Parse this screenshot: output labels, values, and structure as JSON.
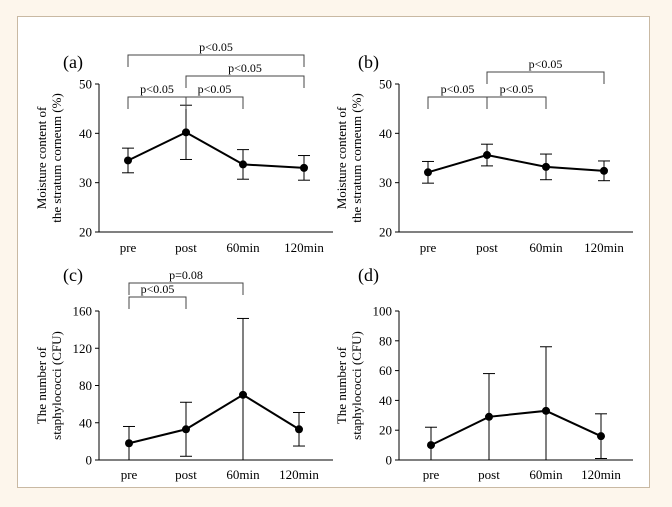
{
  "colors": {
    "page_background": "#fdf6ec",
    "panel_background": "#ffffff",
    "border": "#c9b9a3",
    "ink": "#000000"
  },
  "chart_data": [
    {
      "type": "line",
      "panel_label": "(a)",
      "categories": [
        "pre",
        "post",
        "60min",
        "120min"
      ],
      "values": [
        34.5,
        40.2,
        33.7,
        33.0
      ],
      "error": [
        2.5,
        5.5,
        3.0,
        2.5
      ],
      "ylabel_lines": [
        "Moisture content of",
        "the stratum corneum (%)"
      ],
      "ylim": [
        20,
        50
      ],
      "yticks": [
        20,
        30,
        40,
        50
      ],
      "brackets": [
        {
          "from": 0,
          "to": 3,
          "level": 3,
          "label": "p<0.05"
        },
        {
          "from": 1,
          "to": 3,
          "level": 2,
          "label": "p<0.05"
        },
        {
          "from": 0,
          "to": 1,
          "level": 1,
          "label": "p<0.05"
        },
        {
          "from": 1,
          "to": 2,
          "level": 1,
          "label": "p<0.05"
        }
      ]
    },
    {
      "type": "line",
      "panel_label": "(b)",
      "categories": [
        "pre",
        "post",
        "60min",
        "120min"
      ],
      "values": [
        32.1,
        35.6,
        33.2,
        32.4
      ],
      "error": [
        2.2,
        2.2,
        2.6,
        2.0
      ],
      "ylabel_lines": [
        "Moisture content of",
        "the stratum corneum (%)"
      ],
      "ylim": [
        20,
        50
      ],
      "yticks": [
        20,
        30,
        40,
        50
      ],
      "brackets": [
        {
          "from": 1,
          "to": 3,
          "level": 2,
          "label": "p<0.05"
        },
        {
          "from": 0,
          "to": 1,
          "level": 1,
          "label": "p<0.05"
        },
        {
          "from": 1,
          "to": 2,
          "level": 1,
          "label": "p<0.05"
        }
      ]
    },
    {
      "type": "line",
      "panel_label": "(c)",
      "categories": [
        "pre",
        "post",
        "60min",
        "120min"
      ],
      "values": [
        18,
        33,
        70,
        33
      ],
      "error": [
        18,
        29,
        82,
        18
      ],
      "ylabel_lines": [
        "The number of",
        "staphylococci (CFU)"
      ],
      "ylim": [
        0,
        160
      ],
      "yticks": [
        0,
        40,
        80,
        120,
        160
      ],
      "brackets": [
        {
          "from": 0,
          "to": 2,
          "level": 2,
          "label": "p=0.08"
        },
        {
          "from": 0,
          "to": 1,
          "level": 1,
          "label": "p<0.05"
        }
      ]
    },
    {
      "type": "line",
      "panel_label": "(d)",
      "categories": [
        "pre",
        "post",
        "60min",
        "120min"
      ],
      "values": [
        10,
        29,
        33,
        16
      ],
      "error": [
        12,
        29,
        43,
        15
      ],
      "ylabel_lines": [
        "The number of",
        "staphylococci (CFU)"
      ],
      "ylim": [
        0,
        100
      ],
      "yticks": [
        0,
        20,
        40,
        60,
        80,
        100
      ],
      "brackets": []
    }
  ]
}
